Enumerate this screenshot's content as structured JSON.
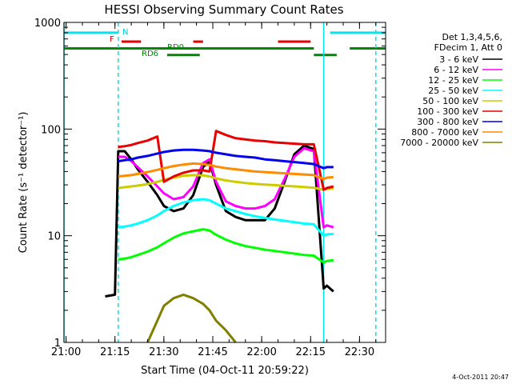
{
  "chart_data": {
    "type": "line",
    "title": "HESSI Observing Summary Count Rates",
    "xlabel": "Start Time (04-Oct-11 20:59:22)",
    "ylabel": "Count Rate (s⁻¹ detector⁻¹)",
    "y_scale": "log",
    "ylim": [
      1,
      1000
    ],
    "xlim": [
      "20:59:22",
      "22:38:00"
    ],
    "x_ticks": [
      "21:00",
      "21:15",
      "21:30",
      "21:45",
      "22:00",
      "22:15",
      "22:30"
    ],
    "y_ticks": [
      "1",
      "10",
      "100",
      "1000"
    ],
    "grid": false,
    "legend_position": "right",
    "legend_header": [
      "Det 1,3,4,5,6,",
      "FDecim 1, Att 0"
    ],
    "timestamp": "4-Oct-2011 20:47",
    "annotations": {
      "F": "F",
      "N": "N",
      "RD0": "RD0",
      "RD6": "RD6"
    },
    "flag_bars": {
      "N": {
        "color": "#00e5ee",
        "y": 800,
        "segments": [
          [
            "20:59:22",
            "21:16:00"
          ],
          [
            "22:21:00",
            "22:38:00"
          ]
        ]
      },
      "F": {
        "color": "#e80000",
        "y": 660,
        "segments": [
          [
            "21:17:00",
            "21:23:00"
          ],
          [
            "21:39:00",
            "21:42:00"
          ],
          [
            "22:05:00",
            "22:15:00"
          ]
        ]
      },
      "RD0": {
        "color": "#008800",
        "y": 570,
        "segments": [
          [
            "20:59:22",
            "22:16:00"
          ],
          [
            "22:27:00",
            "22:38:00"
          ]
        ]
      },
      "RD6": {
        "color": "#008800",
        "y": 495,
        "segments": [
          [
            "21:31:00",
            "21:41:00"
          ],
          [
            "22:16:00",
            "22:23:00"
          ]
        ]
      }
    },
    "vlines": [
      {
        "time": "21:16:00",
        "color": "#00e5ee",
        "style": "dashed"
      },
      {
        "time": "22:19:00",
        "color": "#00e5ee",
        "style": "solid"
      },
      {
        "time": "22:35:00",
        "color": "#00e5ee",
        "style": "dashed"
      },
      {
        "time": "20:59:22",
        "color": "#00e5ee",
        "style": "solid"
      }
    ],
    "x": [
      "21:12",
      "21:15",
      "21:16",
      "21:18",
      "21:20",
      "21:22",
      "21:25",
      "21:28",
      "21:30",
      "21:33",
      "21:36",
      "21:39",
      "21:42",
      "21:44",
      "21:46",
      "21:49",
      "21:52",
      "21:55",
      "21:58",
      "22:01",
      "22:04",
      "22:07",
      "22:10",
      "22:13",
      "22:16",
      "22:19",
      "22:20",
      "22:22",
      "22:24"
    ],
    "series": [
      {
        "name": "3 - 6 keV",
        "color": "#000000",
        "values": [
          2.7,
          2.8,
          62,
          62,
          52,
          42,
          32,
          24,
          19,
          17,
          18,
          24,
          44,
          50,
          30,
          17,
          15,
          14,
          14,
          14,
          18,
          32,
          58,
          70,
          65,
          3.2,
          3.4,
          3.0,
          null
        ]
      },
      {
        "name": "6 - 12 keV",
        "color": "#ff00ff",
        "values": [
          null,
          null,
          55,
          55,
          50,
          44,
          36,
          29,
          25,
          22,
          23,
          29,
          48,
          52,
          32,
          21,
          19,
          18,
          18,
          19,
          22,
          34,
          55,
          66,
          62,
          12,
          12.5,
          12,
          null
        ]
      },
      {
        "name": "12 - 25 keV",
        "color": "#00ff00",
        "values": [
          null,
          null,
          6,
          6.1,
          6.3,
          6.6,
          7.1,
          7.8,
          8.5,
          9.6,
          10.5,
          11,
          11.5,
          11.2,
          10.2,
          9.2,
          8.5,
          8.0,
          7.7,
          7.4,
          7.2,
          7.0,
          6.8,
          6.6,
          6.5,
          5.6,
          5.8,
          5.9,
          null
        ]
      },
      {
        "name": "25 - 50 keV",
        "color": "#00ffff",
        "values": [
          null,
          null,
          12,
          12.2,
          12.5,
          13,
          14,
          15.5,
          17,
          19,
          20.5,
          21.5,
          22,
          21.5,
          20,
          18,
          17,
          16,
          15.2,
          14.7,
          14.2,
          13.8,
          13.4,
          13,
          12.8,
          10,
          10.3,
          10.4,
          null
        ]
      },
      {
        "name": "50 - 100 keV",
        "color": "#cccc00",
        "values": [
          null,
          null,
          28,
          28.5,
          29,
          29.5,
          30.5,
          32,
          33.5,
          35,
          36.5,
          37,
          36.8,
          36,
          34.5,
          33,
          32,
          31.2,
          30.6,
          30.2,
          29.8,
          29.4,
          29,
          28.6,
          28.2,
          27,
          27.5,
          27.8,
          null
        ]
      },
      {
        "name": "100 - 300 keV",
        "color": "#e80000",
        "values": [
          null,
          null,
          68,
          69,
          71,
          74,
          78,
          85,
          32,
          36,
          39,
          41,
          41,
          40,
          96,
          88,
          82,
          80,
          78,
          77,
          75,
          74,
          73,
          72,
          72,
          27,
          28,
          29,
          null
        ]
      },
      {
        "name": "300 - 800 keV",
        "color": "#0000ee",
        "values": [
          null,
          null,
          50,
          51,
          52,
          54,
          56,
          59,
          61,
          63,
          64,
          64,
          63,
          62,
          60,
          58,
          56,
          55,
          54,
          52,
          51,
          50,
          49,
          48,
          47,
          43,
          44,
          44,
          null
        ]
      },
      {
        "name": "800 - 7000 keV",
        "color": "#ff8c00",
        "values": [
          null,
          null,
          36,
          36.5,
          37,
          38,
          39.5,
          41.5,
          43,
          45,
          46.5,
          47.5,
          47,
          46,
          44.5,
          43,
          42,
          41,
          40,
          39.5,
          39,
          38.5,
          38,
          37.5,
          37,
          34,
          35,
          35.5,
          null
        ]
      },
      {
        "name": "7000 - 20000 keV",
        "color": "#808000",
        "values": [
          null,
          null,
          null,
          null,
          null,
          null,
          1,
          1.6,
          2.2,
          2.6,
          2.8,
          2.6,
          2.3,
          2.0,
          1.6,
          1.3,
          1.0,
          null,
          null,
          null,
          null,
          null,
          null,
          null,
          null,
          null,
          null,
          null,
          null
        ]
      }
    ]
  }
}
